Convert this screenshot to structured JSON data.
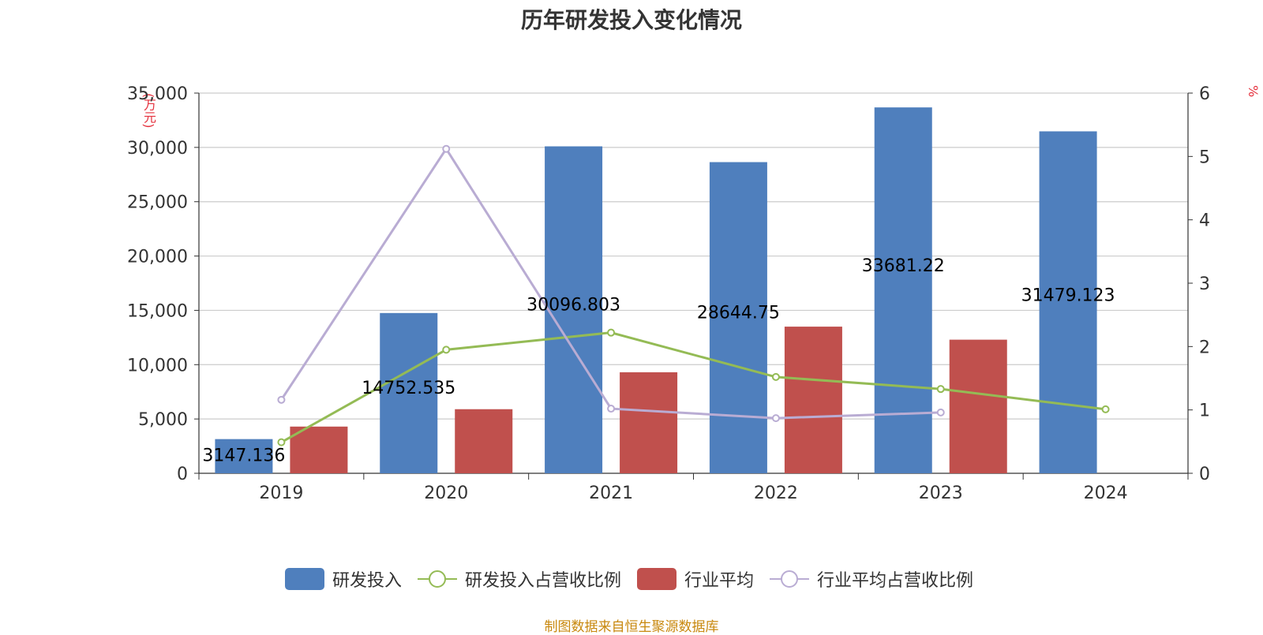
{
  "chart_data": {
    "type": "bar",
    "title": "历年研发投入变化情况",
    "categories": [
      "2019",
      "2020",
      "2021",
      "2022",
      "2023",
      "2024"
    ],
    "left_axis": {
      "unit": "(万元)",
      "ylim": [
        0,
        35000
      ],
      "ticks": [
        0,
        5000,
        10000,
        15000,
        20000,
        25000,
        30000,
        35000
      ],
      "tick_labels": [
        "0",
        "5,000",
        "10,000",
        "15,000",
        "20,000",
        "25,000",
        "30,000",
        "35,000"
      ]
    },
    "right_axis": {
      "unit": "%",
      "ylim": [
        0,
        6
      ],
      "ticks": [
        0,
        1,
        2,
        3,
        4,
        5,
        6
      ],
      "tick_labels": [
        "0",
        "1",
        "2",
        "3",
        "4",
        "5",
        "6"
      ]
    },
    "grid": true,
    "series": [
      {
        "name": "研发投入",
        "kind": "bar",
        "axis": "left",
        "color": "#4f7fbd",
        "values": [
          3147.136,
          14752.535,
          30096.803,
          28644.75,
          33681.22,
          31479.123
        ],
        "labels": [
          "3147.136",
          "14752.535",
          "30096.803",
          "28644.75",
          "33681.22",
          "31479.123"
        ]
      },
      {
        "name": "研发投入占营收比例",
        "kind": "line",
        "axis": "right",
        "color": "#94bb55",
        "values": [
          0.49,
          1.95,
          2.22,
          1.52,
          1.33,
          1.01
        ]
      },
      {
        "name": "行业平均",
        "kind": "bar",
        "axis": "left",
        "color": "#c0504d",
        "values": [
          4300,
          5900,
          9300,
          13500,
          12300,
          null
        ]
      },
      {
        "name": "行业平均占营收比例",
        "kind": "line",
        "axis": "right",
        "color": "#b9acd3",
        "values": [
          1.16,
          5.12,
          1.02,
          0.87,
          0.96,
          null
        ]
      }
    ],
    "legend_position": "bottom-center",
    "source": "制图数据来自恒生聚源数据库"
  }
}
